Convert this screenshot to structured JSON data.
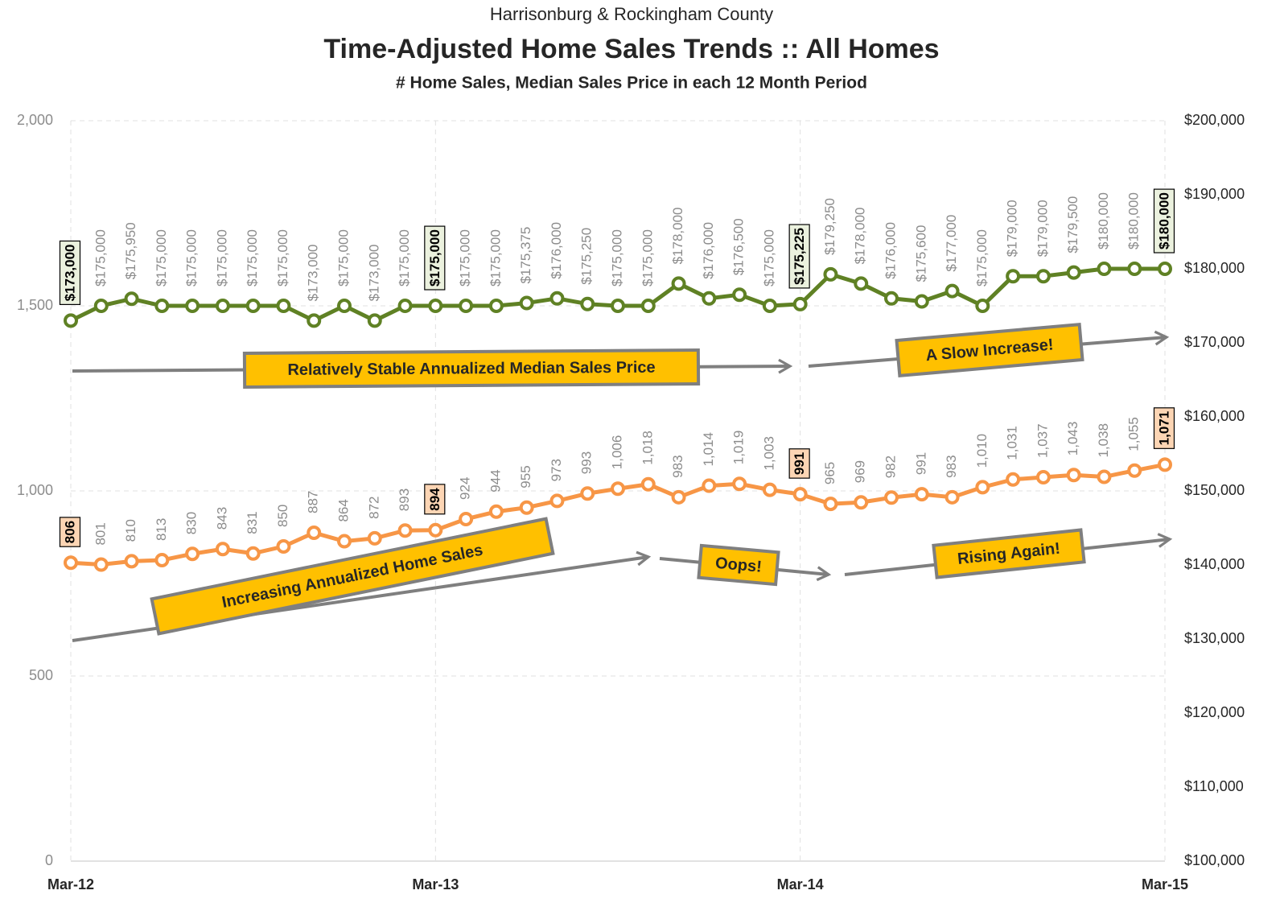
{
  "chart_data": {
    "type": "line",
    "supertitle": "Harrisonburg & Rockingham County",
    "title": "Time-Adjusted Home Sales Trends  ::  All Homes",
    "subtitle": "# Home Sales, Median Sales Price in each 12 Month Period",
    "categories": [
      "Mar-12",
      null,
      null,
      null,
      null,
      null,
      null,
      null,
      null,
      null,
      null,
      null,
      "Mar-13",
      null,
      null,
      null,
      null,
      null,
      null,
      null,
      null,
      null,
      null,
      null,
      "Mar-14",
      null,
      null,
      null,
      null,
      null,
      null,
      null,
      null,
      null,
      null,
      null,
      "Mar-15"
    ],
    "ylim": [
      0,
      2000
    ],
    "yticks": [
      0,
      500,
      {
        "value": 1000,
        "label": "1,000"
      },
      {
        "value": 1500,
        "label": "1,500"
      },
      {
        "value": 2000,
        "label": "2,000"
      }
    ],
    "y2lim": [
      100000,
      200000
    ],
    "y2ticks": [
      {
        "value": 100000,
        "label": "$100,000"
      },
      {
        "value": 110000,
        "label": "$110,000"
      },
      {
        "value": 120000,
        "label": "$120,000"
      },
      {
        "value": 130000,
        "label": "$130,000"
      },
      {
        "value": 140000,
        "label": "$140,000"
      },
      {
        "value": 150000,
        "label": "$150,000"
      },
      {
        "value": 160000,
        "label": "$160,000"
      },
      {
        "value": 170000,
        "label": "$170,000"
      },
      {
        "value": 180000,
        "label": "$180,000"
      },
      {
        "value": 190000,
        "label": "$190,000"
      },
      {
        "value": 200000,
        "label": "$200,000"
      }
    ],
    "grid": true,
    "series": [
      {
        "name": "Median Sales Price",
        "color": "#5f8124",
        "axis": "y2",
        "label_fill": "#ebf1de",
        "values": [
          173000,
          175000,
          175950,
          175000,
          175000,
          175000,
          175000,
          175000,
          173000,
          175000,
          173000,
          175000,
          175000,
          175000,
          175000,
          175375,
          176000,
          175250,
          175000,
          175000,
          178000,
          176000,
          176500,
          175000,
          175225,
          179250,
          178000,
          176000,
          175600,
          177000,
          175000,
          179000,
          179000,
          179500,
          180000,
          180000,
          180000
        ],
        "value_labels": [
          "$173,000",
          "$175,000",
          "$175,950",
          "$175,000",
          "$175,000",
          "$175,000",
          "$175,000",
          "$175,000",
          "$173,000",
          "$175,000",
          "$173,000",
          "$175,000",
          "$175,000",
          "$175,000",
          "$175,000",
          "$175,375",
          "$176,000",
          "$175,250",
          "$175,000",
          "$175,000",
          "$178,000",
          "$176,000",
          "$176,500",
          "$175,000",
          "$175,225",
          "$179,250",
          "$178,000",
          "$176,000",
          "$175,600",
          "$177,000",
          "$175,000",
          "$179,000",
          "$179,000",
          "$179,500",
          "$180,000",
          "$180,000",
          "$180,000"
        ]
      },
      {
        "name": "# Home Sales",
        "color": "#f79646",
        "label_fill": "#fcd5b4",
        "values": [
          806,
          801,
          810,
          813,
          830,
          843,
          831,
          850,
          887,
          864,
          872,
          893,
          894,
          924,
          944,
          955,
          973,
          993,
          1006,
          1018,
          983,
          1014,
          1019,
          1003,
          991,
          965,
          969,
          982,
          991,
          983,
          1010,
          1031,
          1037,
          1043,
          1038,
          1055,
          1071
        ],
        "value_labels": [
          "806",
          "801",
          "810",
          "813",
          "830",
          "843",
          "831",
          "850",
          "887",
          "864",
          "872",
          "893",
          "894",
          "924",
          "944",
          "955",
          "973",
          "993",
          "1,006",
          "1,018",
          "983",
          "1,014",
          "1,019",
          "1,003",
          "991",
          "965",
          "969",
          "982",
          "991",
          "983",
          "1,010",
          "1,031",
          "1,037",
          "1,043",
          "1,038",
          "1,055",
          "1,071"
        ]
      }
    ],
    "annotations": [
      "Relatively Stable Annualized Median Sales Price",
      "A Slow Increase!",
      "Increasing Annualized Home Sales",
      "Oops!",
      "Rising Again!"
    ]
  }
}
